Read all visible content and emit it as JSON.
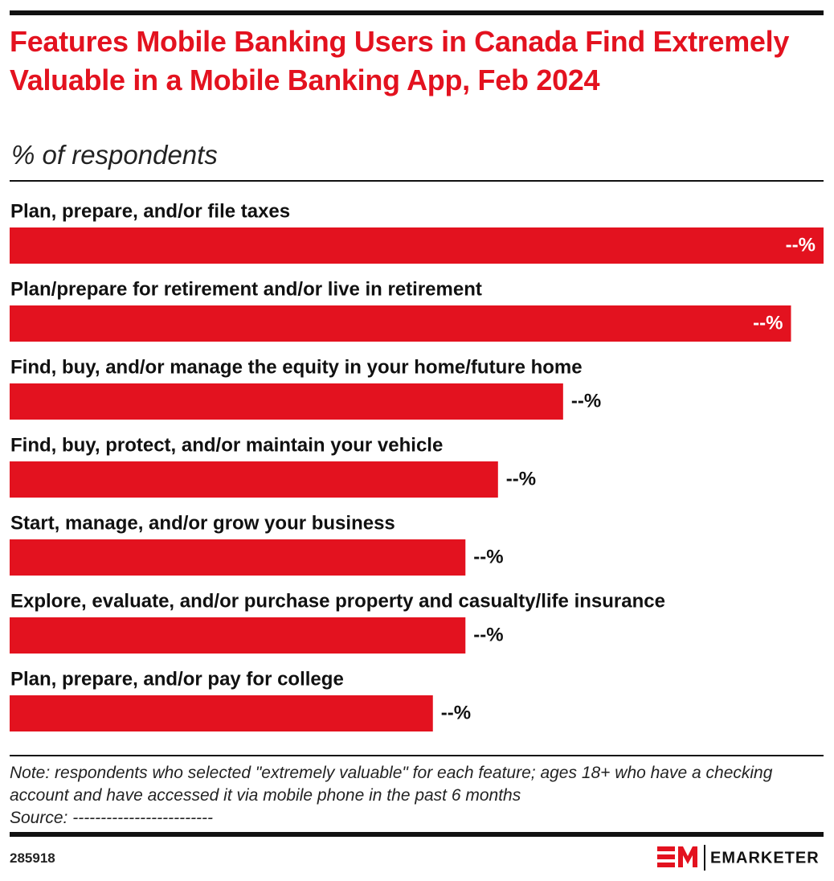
{
  "chart_data": {
    "type": "bar",
    "orientation": "horizontal",
    "title": "Features Mobile Banking Users in Canada Find Extremely Valuable in a Mobile Banking App, Feb 2024",
    "subtitle": "% of respondents",
    "categories": [
      "Plan, prepare, and/or file taxes",
      "Plan/prepare for retirement and/or live in retirement",
      "Find, buy, and/or manage the equity in your home/future home",
      "Find, buy, protect, and/or maintain your vehicle",
      "Start, manage, and/or grow your business",
      "Explore, evaluate, and/or purchase property and casualty/life insurance",
      "Plan, prepare, and/or pay for college"
    ],
    "values": [
      25,
      24,
      17,
      15,
      14,
      14,
      13
    ],
    "value_labels": [
      "--%",
      "--%",
      "--%",
      "--%",
      "--%",
      "--%",
      "--%"
    ],
    "color": "#e3121f",
    "xlim": [
      0,
      25
    ],
    "note": "Note: respondents who selected \"extremely valuable\" for each feature; ages 18+ who have a checking account and have accessed it via mobile phone in the past 6 months",
    "source": "Source: -------------------------",
    "chart_id": "285918",
    "brand": "EMARKETER"
  }
}
